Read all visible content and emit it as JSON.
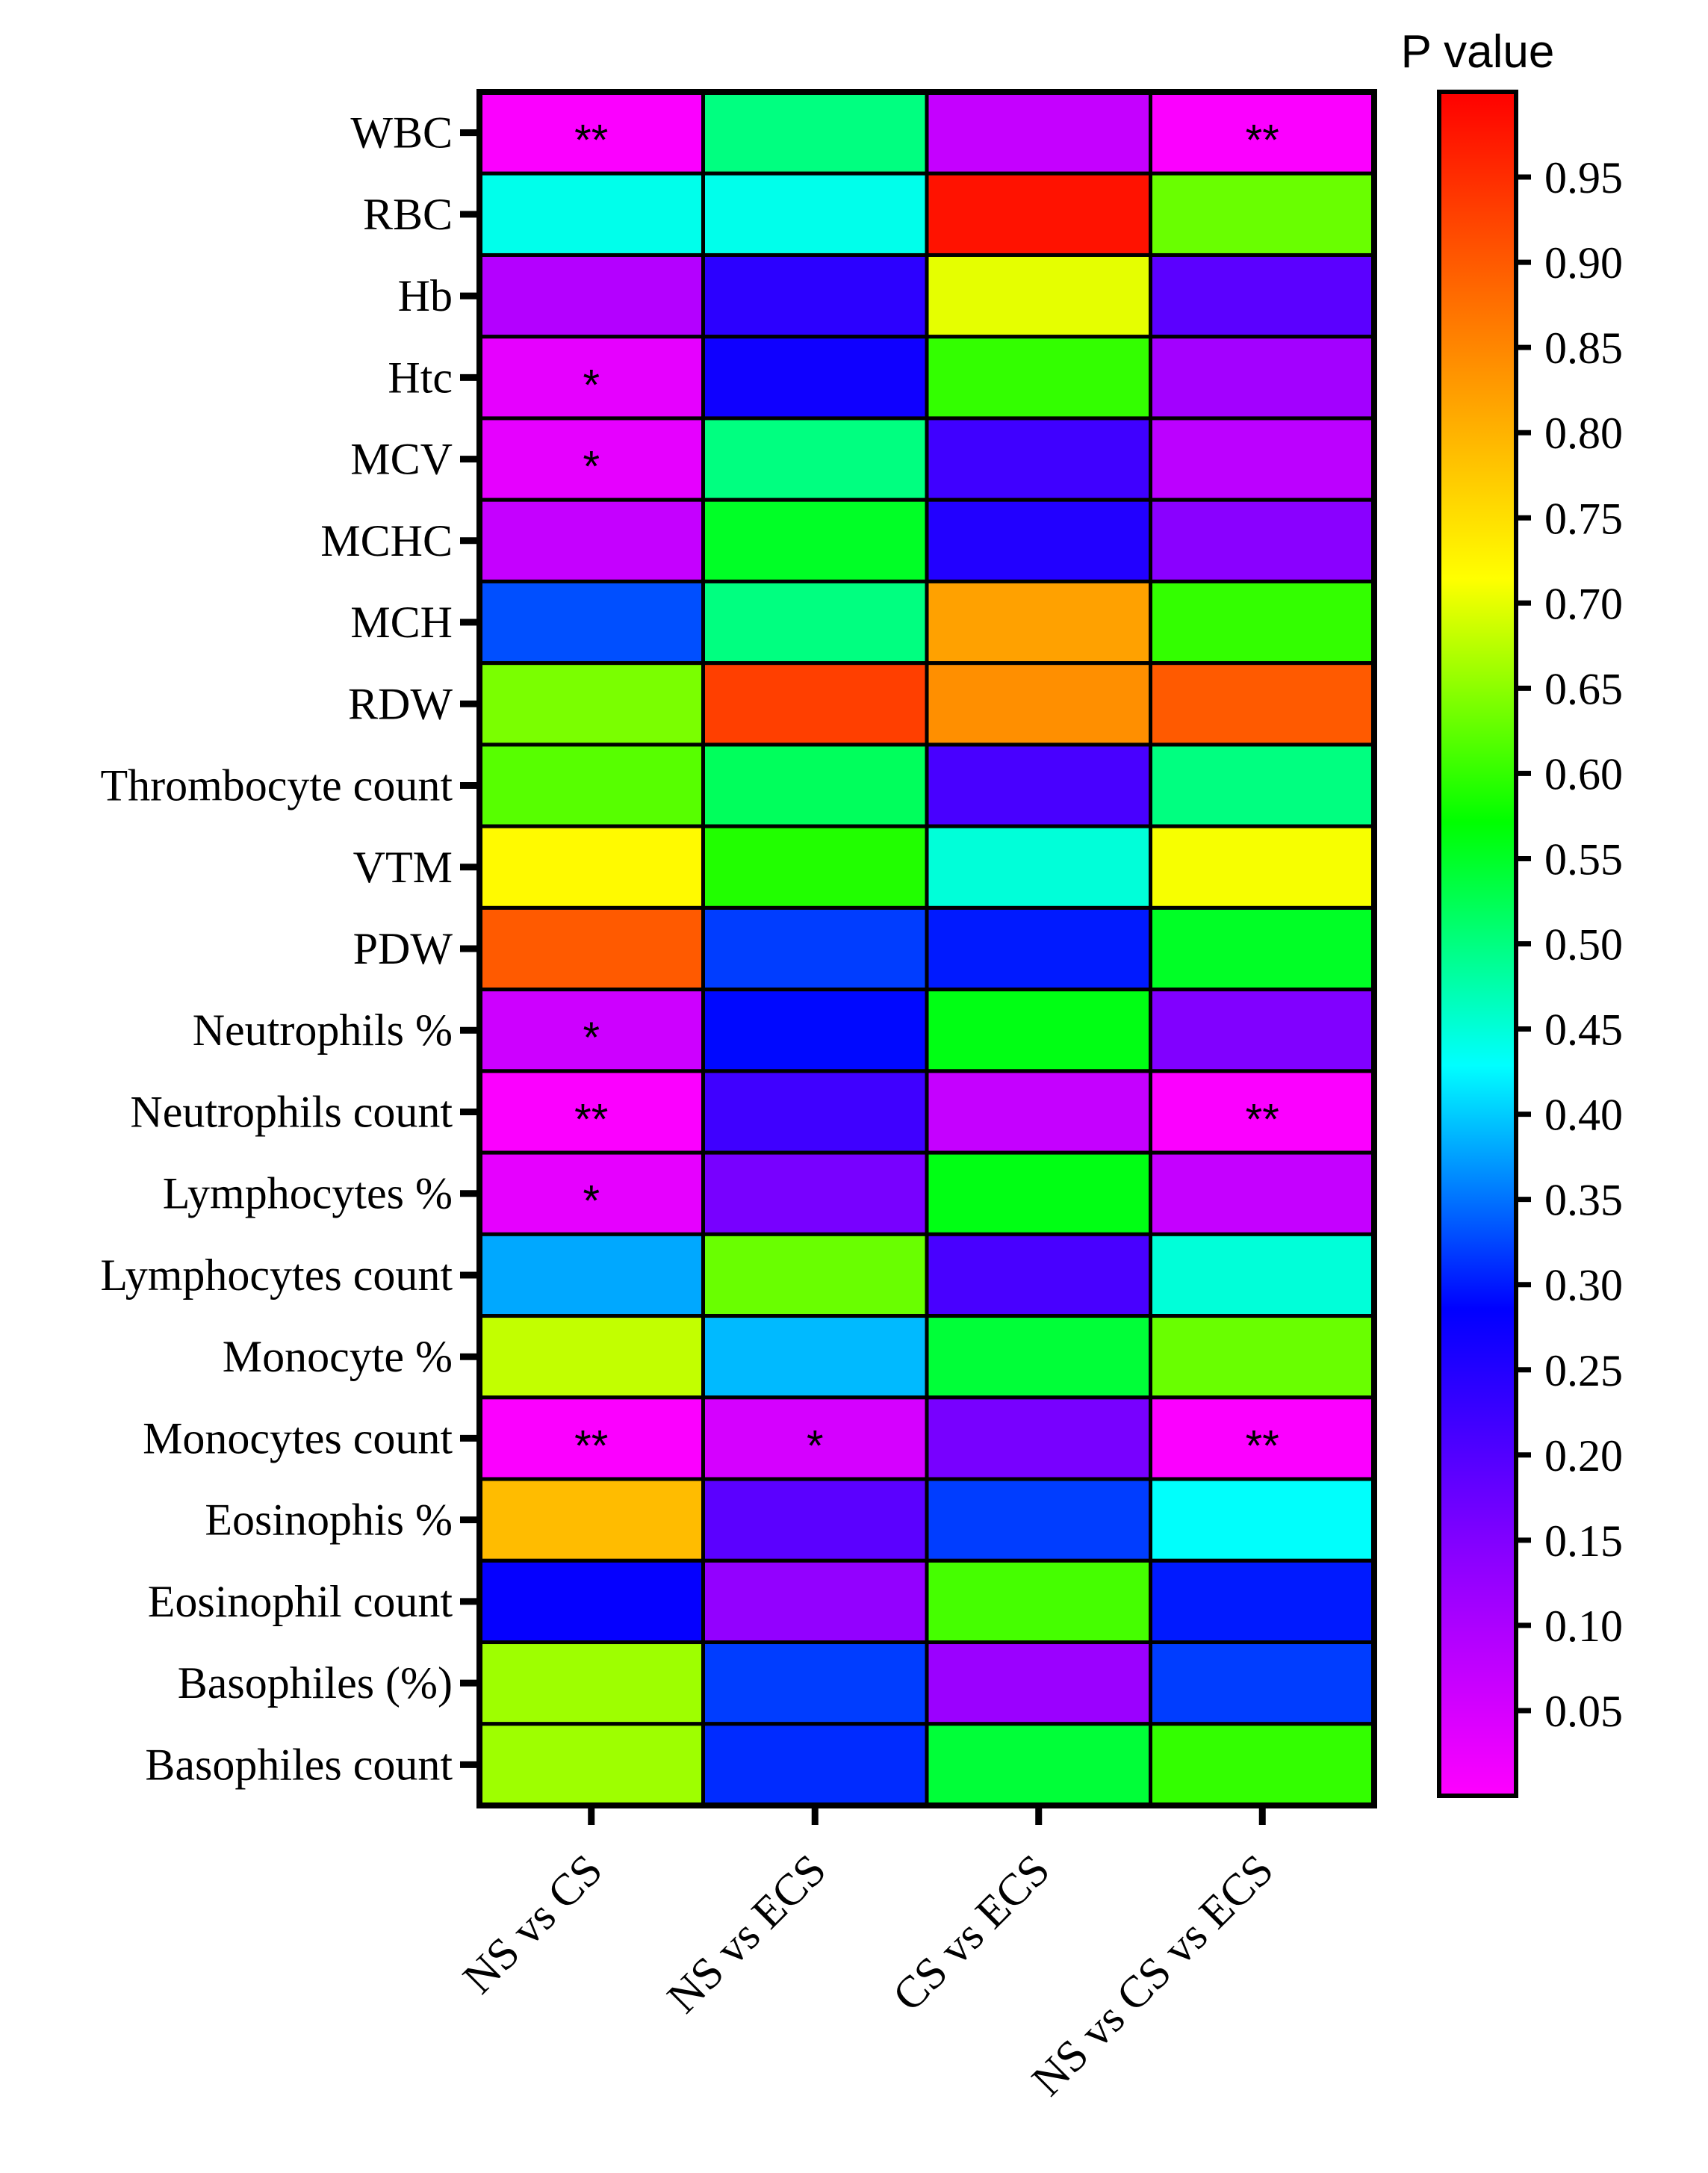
{
  "chart_data": {
    "type": "heatmap",
    "rows": [
      "WBC",
      "RBC",
      "Hb",
      "Htc",
      "MCV",
      "MCHC",
      "MCH",
      "RDW",
      "Thrombocyte count",
      "VTM",
      "PDW",
      "Neutrophils %",
      "Neutrophils count",
      "Lymphocytes %",
      "Lymphocytes count",
      "Monocyte %",
      "Monocytes count",
      "Eosinophis %",
      "Eosinophil count",
      "Basophiles (%)",
      "Basophiles count"
    ],
    "columns": [
      "NS vs CS",
      "NS vs ECS",
      "CS vs ECS",
      "NS vs CS vs ECS"
    ],
    "values": [
      [
        0.005,
        0.5,
        0.07,
        0.005
      ],
      [
        0.44,
        0.44,
        0.98,
        0.63
      ],
      [
        0.09,
        0.24,
        0.7,
        0.19
      ],
      [
        0.03,
        0.27,
        0.6,
        0.11
      ],
      [
        0.03,
        0.5,
        0.22,
        0.08
      ],
      [
        0.07,
        0.55,
        0.25,
        0.14
      ],
      [
        0.33,
        0.5,
        0.82,
        0.6
      ],
      [
        0.64,
        0.93,
        0.84,
        0.9
      ],
      [
        0.62,
        0.52,
        0.21,
        0.5
      ],
      [
        0.72,
        0.59,
        0.45,
        0.71
      ],
      [
        0.9,
        0.32,
        0.3,
        0.55
      ],
      [
        0.06,
        0.29,
        0.56,
        0.15
      ],
      [
        0.005,
        0.22,
        0.07,
        0.005
      ],
      [
        0.03,
        0.16,
        0.56,
        0.07
      ],
      [
        0.38,
        0.63,
        0.21,
        0.45
      ],
      [
        0.68,
        0.39,
        0.54,
        0.63
      ],
      [
        0.005,
        0.05,
        0.16,
        0.005
      ],
      [
        0.79,
        0.19,
        0.32,
        0.43
      ],
      [
        0.28,
        0.13,
        0.61,
        0.3
      ],
      [
        0.66,
        0.32,
        0.12,
        0.32
      ],
      [
        0.66,
        0.31,
        0.54,
        0.6
      ]
    ],
    "annotations": [
      [
        "**",
        "",
        "",
        "**"
      ],
      [
        "",
        "",
        "",
        ""
      ],
      [
        "",
        "",
        "",
        ""
      ],
      [
        "*",
        "",
        "",
        ""
      ],
      [
        "*",
        "",
        "",
        ""
      ],
      [
        "",
        "",
        "",
        ""
      ],
      [
        "",
        "",
        "",
        ""
      ],
      [
        "",
        "",
        "",
        ""
      ],
      [
        "",
        "",
        "",
        ""
      ],
      [
        "",
        "",
        "",
        ""
      ],
      [
        "",
        "",
        "",
        ""
      ],
      [
        "*",
        "",
        "",
        ""
      ],
      [
        "**",
        "",
        "",
        "**"
      ],
      [
        "*",
        "",
        "",
        ""
      ],
      [
        "",
        "",
        "",
        ""
      ],
      [
        "",
        "",
        "",
        ""
      ],
      [
        "**",
        "*",
        "",
        "**"
      ],
      [
        "",
        "",
        "",
        ""
      ],
      [
        "",
        "",
        "",
        ""
      ],
      [
        "",
        "",
        "",
        ""
      ],
      [
        "",
        "",
        "",
        ""
      ]
    ],
    "colorbar": {
      "title": "P value",
      "range": [
        0.0,
        1.0
      ],
      "ticks": [
        "0.05",
        "0.10",
        "0.15",
        "0.20",
        "0.25",
        "0.30",
        "0.35",
        "0.40",
        "0.45",
        "0.50",
        "0.55",
        "0.60",
        "0.65",
        "0.70",
        "0.75",
        "0.80",
        "0.85",
        "0.90",
        "0.95"
      ],
      "colors": [
        "#ff00ff",
        "#8800ff",
        "#0000ff",
        "#00ffff",
        "#00ff00",
        "#ffff00",
        "#ff8000",
        "#ff0000"
      ]
    },
    "grid": true
  }
}
